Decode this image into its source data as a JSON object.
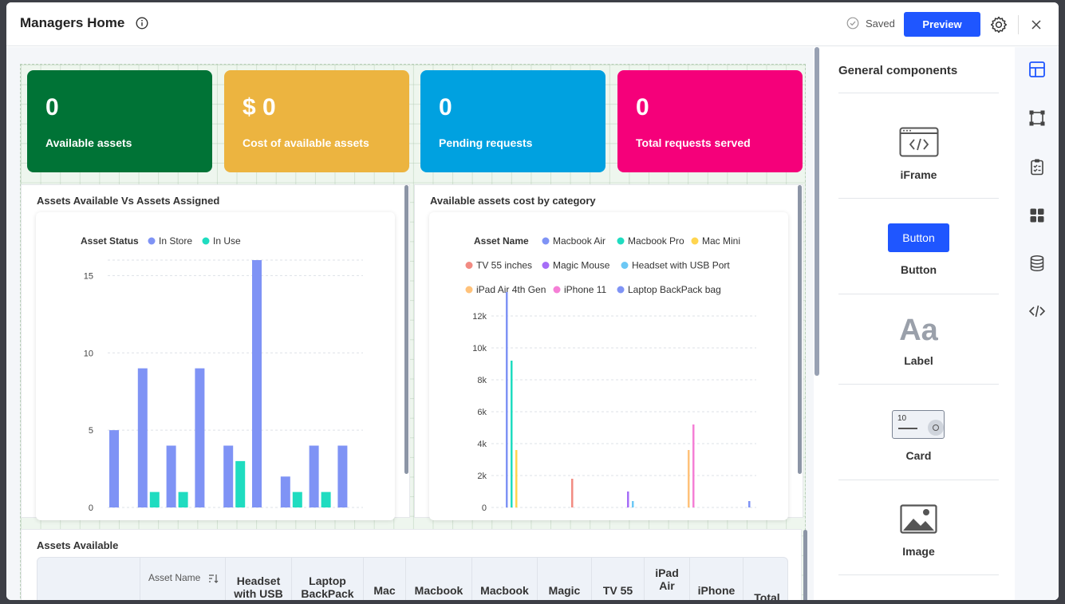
{
  "header": {
    "title": "Managers Home",
    "saved_label": "Saved",
    "preview_label": "Preview"
  },
  "stats": [
    {
      "value": "0",
      "label": "Available assets",
      "color": "#007336"
    },
    {
      "value": "$ 0",
      "label": "Cost of available assets",
      "color": "#ecb440"
    },
    {
      "value": "0",
      "label": "Pending requests",
      "color": "#00a1e0"
    },
    {
      "value": "0",
      "label": "Total requests served",
      "color": "#f5007a"
    }
  ],
  "panels": {
    "assets_chart_title": "Assets Available Vs Assets Assigned",
    "cost_chart_title": "Available assets cost by category",
    "table_title": "Assets Available"
  },
  "chart_data": [
    {
      "type": "bar",
      "title": "Assets Available Vs Assets Assigned",
      "legend_title": "Asset Status",
      "legend_position": "top",
      "grid": true,
      "ylim": [
        0,
        16
      ],
      "yticks": [
        0,
        5,
        10,
        15
      ],
      "series": [
        {
          "name": "In Store",
          "color": "#7f93f5",
          "values": [
            5,
            9,
            4,
            9,
            4,
            16,
            2,
            4,
            4
          ]
        },
        {
          "name": "In Use",
          "color": "#1fdcc0",
          "values": [
            0,
            1,
            1,
            0,
            3,
            0,
            1,
            1,
            0
          ]
        }
      ]
    },
    {
      "type": "bar",
      "title": "Available assets cost by category",
      "legend_title": "Asset Name",
      "legend_position": "top",
      "grid": true,
      "ylim": [
        0,
        13000
      ],
      "yticks": [
        0,
        2000,
        4000,
        6000,
        8000,
        10000,
        12000
      ],
      "ytick_labels": [
        "0",
        "2k",
        "4k",
        "6k",
        "8k",
        "10k",
        "12k"
      ],
      "series": [
        {
          "name": "Macbook Air",
          "color": "#7f93f5",
          "values": [
            13500,
            0,
            0,
            0,
            0,
            0,
            0,
            0,
            0
          ]
        },
        {
          "name": "Macbook Pro",
          "color": "#1fdcc0",
          "values": [
            9200,
            0,
            0,
            0,
            0,
            0,
            0,
            0,
            0
          ]
        },
        {
          "name": "Mac Mini",
          "color": "#ffd54f",
          "values": [
            3600,
            0,
            0,
            0,
            0,
            0,
            0,
            0,
            0
          ]
        },
        {
          "name": "TV 55 inches",
          "color": "#f28b82",
          "values": [
            0,
            1800,
            0,
            0,
            0,
            0,
            0,
            0,
            0
          ]
        },
        {
          "name": "Magic Mouse",
          "color": "#a66ef7",
          "values": [
            0,
            0,
            1000,
            0,
            0,
            0,
            0,
            0,
            0
          ]
        },
        {
          "name": "Headset with USB Port",
          "color": "#6cc8f5",
          "values": [
            0,
            0,
            400,
            0,
            0,
            0,
            0,
            0,
            0
          ]
        },
        {
          "name": "iPad Air 4th Gen",
          "color": "#ffc27a",
          "values": [
            0,
            0,
            0,
            3600,
            0,
            0,
            0,
            0,
            0
          ]
        },
        {
          "name": "iPhone 11",
          "color": "#f57fd6",
          "values": [
            0,
            0,
            0,
            5200,
            0,
            0,
            0,
            0,
            0
          ]
        },
        {
          "name": "Laptop BackPack bag",
          "color": "#7f93f5",
          "values": [
            0,
            0,
            0,
            0,
            400,
            0,
            0,
            0,
            0
          ]
        }
      ]
    }
  ],
  "table": {
    "columns": [
      "",
      "Asset Name",
      "Headset with USB",
      "Laptop BackPack",
      "Mac",
      "Macbook",
      "Macbook",
      "Magic",
      "TV 55",
      "iPad Air",
      "iPhone",
      "Total"
    ]
  },
  "right_panel": {
    "title": "General components",
    "components": [
      {
        "label": "iFrame",
        "icon": "iframe-icon"
      },
      {
        "label": "Button",
        "icon": "button-icon",
        "preview_text": "Button"
      },
      {
        "label": "Label",
        "icon": "label-icon",
        "preview_text": "Aa"
      },
      {
        "label": "Card",
        "icon": "card-icon",
        "preview_text": "10"
      },
      {
        "label": "Image",
        "icon": "image-icon"
      }
    ]
  },
  "rail_icons": [
    "layout-icon",
    "frame-icon",
    "clipboard-icon",
    "grid-icon",
    "database-icon",
    "code-icon"
  ]
}
